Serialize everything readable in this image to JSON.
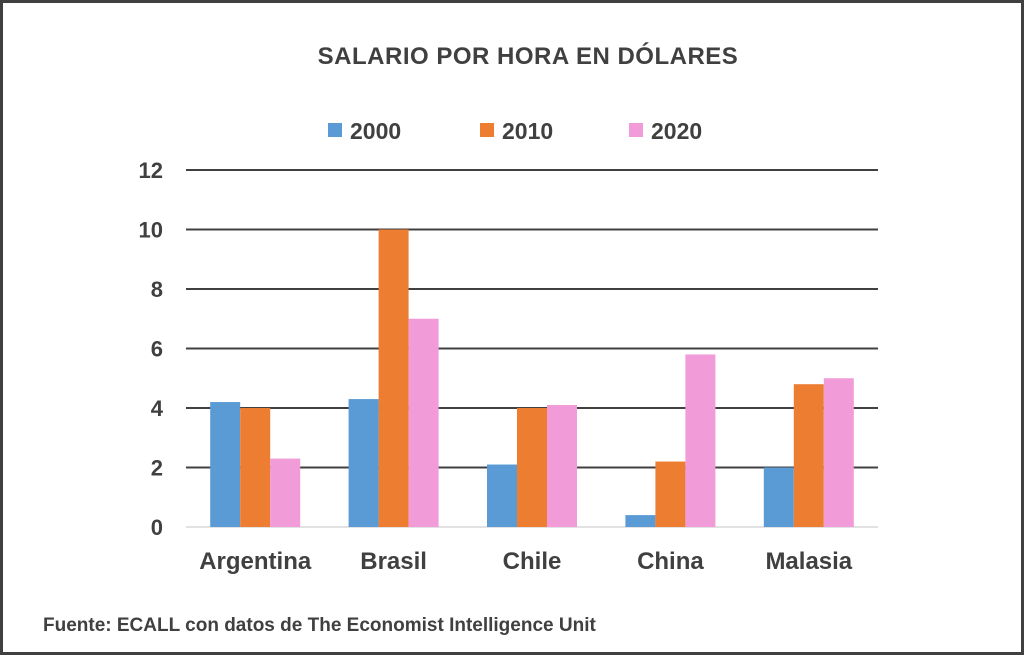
{
  "chart_data": {
    "type": "bar",
    "title": "SALARIO  POR HORA  EN  DÓLARES",
    "categories": [
      "Argentina",
      "Brasil",
      "Chile",
      "China",
      "Malasia"
    ],
    "series": [
      {
        "name": "2000",
        "color": "#5B9BD5",
        "values": [
          4.2,
          4.3,
          2.1,
          0.4,
          2.0
        ]
      },
      {
        "name": "2010",
        "color": "#ED7D31",
        "values": [
          4.0,
          10.0,
          4.0,
          2.2,
          4.8
        ]
      },
      {
        "name": "2020",
        "color": "#F19BD8",
        "values": [
          2.3,
          7.0,
          4.1,
          5.8,
          5.0
        ]
      }
    ],
    "ylim": [
      0,
      12
    ],
    "yticks": [
      "0",
      "2",
      "4",
      "6",
      "8",
      "10",
      "12"
    ],
    "grid": true,
    "legend_position": "top",
    "xlabel": "",
    "ylabel": ""
  },
  "source_note": "Fuente: ECALL con datos de The Economist Intelligence Unit"
}
